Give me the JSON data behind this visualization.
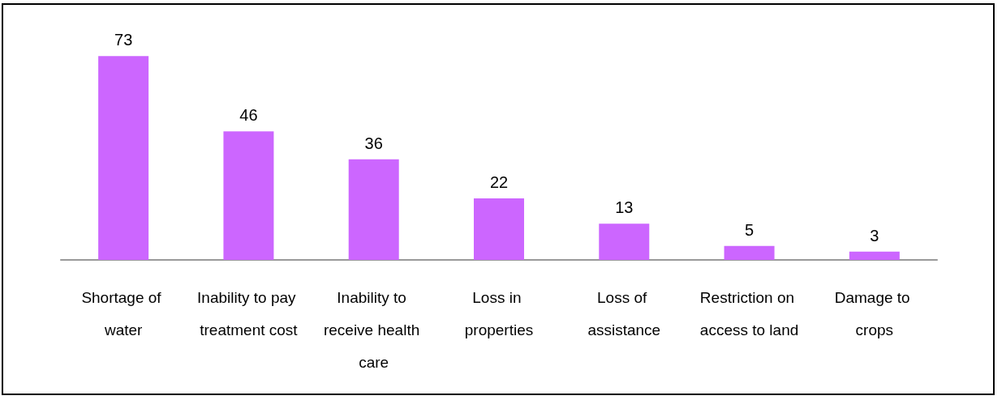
{
  "chart_data": {
    "type": "bar",
    "categories": [
      "Shortage of water",
      "Inability to pay treatment cost",
      "Inability to receive health care",
      "Loss in properties",
      "Loss of assistance",
      "Restriction on access to land",
      "Damage to crops"
    ],
    "values": [
      73,
      46,
      36,
      22,
      13,
      5,
      3
    ],
    "color": "#cc66ff",
    "data_labels": true
  }
}
